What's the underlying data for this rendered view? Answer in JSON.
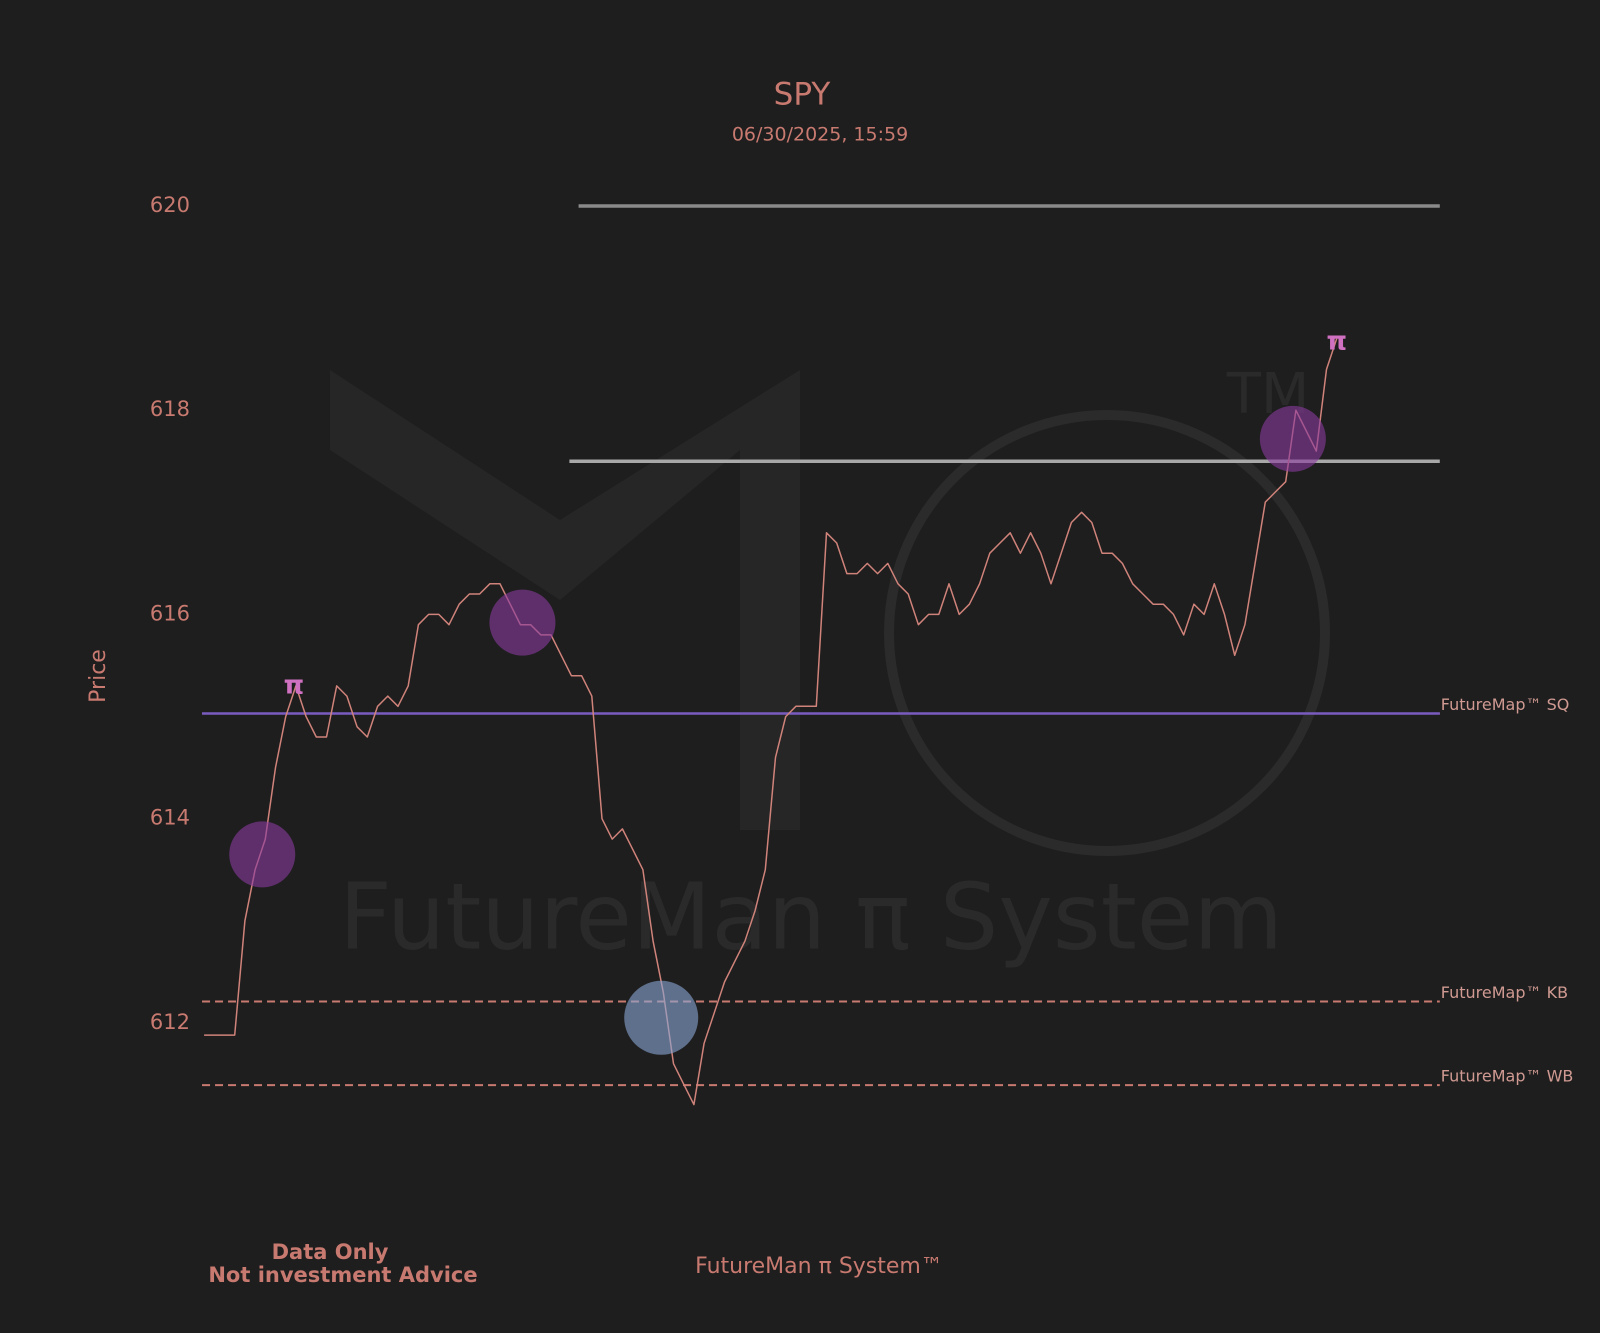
{
  "chart_data": {
    "type": "line",
    "title": "SPY",
    "subtitle": "06/30/2025, 15:59",
    "y_label": "Price",
    "footer_left": [
      "Data Only",
      "Not investment Advice"
    ],
    "footer_center": "FutureMan π System™",
    "watermark": "FutureMan π System",
    "watermark_tm": "TM",
    "color": "#d0837a",
    "ylim": [
      611,
      620
    ],
    "yticks": [
      612,
      614,
      616,
      618,
      620
    ],
    "grid": false,
    "values": [
      611.88,
      611.88,
      611.88,
      611.88,
      613.0,
      613.5,
      613.8,
      614.5,
      615.0,
      615.3,
      615.0,
      614.8,
      614.8,
      615.3,
      615.2,
      614.9,
      614.8,
      615.1,
      615.2,
      615.1,
      615.3,
      615.9,
      616.0,
      616.0,
      615.9,
      616.1,
      616.2,
      616.2,
      616.3,
      616.3,
      616.1,
      615.9,
      615.9,
      615.8,
      615.8,
      615.6,
      615.4,
      615.4,
      615.2,
      614.0,
      613.8,
      613.9,
      613.7,
      613.5,
      612.8,
      612.3,
      611.6,
      611.4,
      611.2,
      611.8,
      612.1,
      612.4,
      612.6,
      612.8,
      613.1,
      613.5,
      614.6,
      615.0,
      615.1,
      615.1,
      615.1,
      616.8,
      616.7,
      616.4,
      616.4,
      616.5,
      616.4,
      616.5,
      616.3,
      616.2,
      615.9,
      616.0,
      616.0,
      616.3,
      616.0,
      616.1,
      616.3,
      616.6,
      616.7,
      616.8,
      616.6,
      616.8,
      616.6,
      616.3,
      616.6,
      616.9,
      617.0,
      616.9,
      616.6,
      616.6,
      616.5,
      616.3,
      616.2,
      616.1,
      616.1,
      616.0,
      615.8,
      616.1,
      616.0,
      616.3,
      616.0,
      615.6,
      615.9,
      616.5,
      617.1,
      617.2,
      617.3,
      618.0,
      617.8,
      617.6,
      618.4,
      618.7
    ],
    "hlines": [
      {
        "value": 620,
        "color": "#8a8a8a",
        "from": 36.7
      },
      {
        "value": 617.5,
        "color": "#a8a8a8",
        "from": 35.8
      },
      {
        "value": 615.03,
        "color": "#c87a70",
        "dash": true,
        "label": "FutureMap™ SQ"
      },
      {
        "value": 615.03,
        "color": "#7a5cc0"
      },
      {
        "value": 612.21,
        "color": "#c87a70",
        "dash": true,
        "label": "FutureMap™ KB"
      },
      {
        "value": 611.39,
        "color": "#c87a70",
        "dash": true,
        "label": "FutureMap™ WB"
      }
    ],
    "highlights": [
      {
        "x": 5.7,
        "y": 613.65,
        "color": "#8a3aa0"
      },
      {
        "x": 31.2,
        "y": 615.92,
        "color": "#8a3aa0"
      },
      {
        "x": 44.8,
        "y": 612.05,
        "color": "#8aa6d6"
      },
      {
        "x": 106.7,
        "y": 617.72,
        "color": "#8a3aa0"
      }
    ],
    "pi_marks": [
      {
        "x": 8.8,
        "y": 615.3,
        "label": "π"
      },
      {
        "x": 111,
        "y": 618.67,
        "label": "π"
      }
    ]
  }
}
